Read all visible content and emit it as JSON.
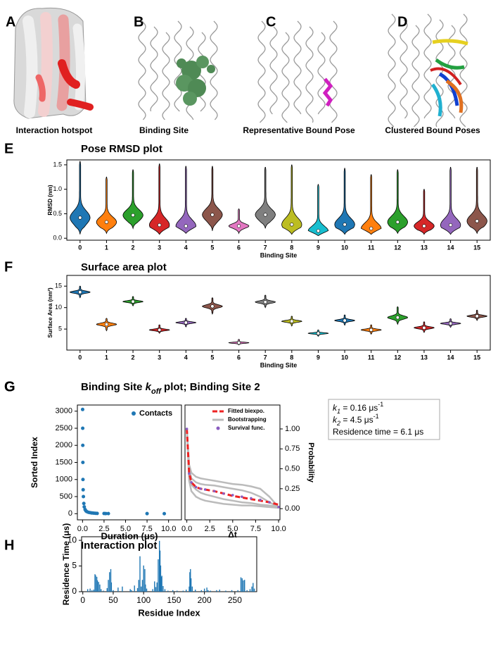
{
  "panels": [
    {
      "label": "A",
      "caption": "Interaction hotspot"
    },
    {
      "label": "B",
      "caption": "Binding Site"
    },
    {
      "label": "C",
      "caption": "Representative Bound Pose"
    },
    {
      "label": "D",
      "caption": "Clustered Bound Poses"
    }
  ],
  "chart_data": [
    {
      "type": "violin",
      "label": "E",
      "title": "Pose RMSD plot",
      "xlabel": "Binding Site",
      "ylabel": "RMSD (nm)",
      "categories": [
        "0",
        "1",
        "2",
        "3",
        "4",
        "5",
        "6",
        "7",
        "8",
        "9",
        "10",
        "11",
        "12",
        "13",
        "14",
        "15"
      ],
      "values": [
        0.42,
        0.33,
        0.47,
        0.27,
        0.25,
        0.48,
        0.25,
        0.48,
        0.28,
        0.15,
        0.28,
        0.2,
        0.33,
        0.25,
        0.27,
        0.35
      ],
      "max": [
        1.57,
        1.25,
        1.4,
        1.52,
        1.47,
        1.47,
        0.6,
        1.45,
        1.5,
        1.1,
        1.43,
        1.3,
        1.4,
        1.0,
        1.45,
        1.45
      ],
      "min": [
        0.08,
        0.1,
        0.2,
        0.08,
        0.1,
        0.15,
        0.1,
        0.2,
        0.08,
        0.05,
        0.08,
        0.08,
        0.1,
        0.08,
        0.08,
        0.1
      ],
      "colors": [
        "#1f77b4",
        "#ff7f0e",
        "#2ca02c",
        "#d62728",
        "#9467bd",
        "#8c564b",
        "#e377c2",
        "#7f7f7f",
        "#bcbd22",
        "#17becf",
        "#1f77b4",
        "#ff7f0e",
        "#2ca02c",
        "#d62728",
        "#9467bd",
        "#8c564b"
      ],
      "ylim": [
        -0.04,
        1.6
      ],
      "yticks": [
        {
          "value": 0,
          "label": "0.0"
        },
        0.5,
        {
          "value": 1,
          "label": "1.0"
        },
        1.5
      ]
    },
    {
      "type": "violin",
      "label": "F",
      "title": "Surface area plot",
      "xlabel": "Binding Site",
      "ylabel": "Surface Area (nm²)",
      "categories": [
        "0",
        "1",
        "2",
        "3",
        "4",
        "5",
        "6",
        "7",
        "8",
        "9",
        "10",
        "11",
        "12",
        "13",
        "14",
        "15"
      ],
      "values": [
        13.6,
        6.1,
        11.4,
        4.8,
        6.5,
        10.3,
        1.8,
        11.3,
        6.8,
        4.0,
        7.0,
        4.8,
        7.7,
        5.3,
        6.3,
        8.0
      ],
      "max": [
        15.0,
        7.5,
        12.6,
        6.0,
        7.5,
        12.3,
        2.6,
        12.9,
        8.0,
        4.8,
        8.3,
        6.0,
        10.2,
        6.7,
        7.4,
        9.4
      ],
      "min": [
        12.3,
        4.6,
        10.4,
        4.0,
        5.5,
        8.5,
        1.3,
        10.0,
        5.7,
        3.3,
        5.9,
        3.8,
        6.1,
        4.2,
        5.4,
        7.0
      ],
      "colors": [
        "#1f77b4",
        "#ff7f0e",
        "#2ca02c",
        "#d62728",
        "#9467bd",
        "#8c564b",
        "#e377c2",
        "#7f7f7f",
        "#bcbd22",
        "#17becf",
        "#1f77b4",
        "#ff7f0e",
        "#2ca02c",
        "#d62728",
        "#9467bd",
        "#8c564b"
      ],
      "ylim": [
        0.1,
        17.5
      ],
      "yticks": [
        5,
        10,
        15
      ]
    },
    {
      "type": "scatter",
      "label": "G",
      "title_parts": [
        "Binding Site ",
        "k",
        "off",
        " plot; Binding Site 2"
      ],
      "xlabel": "Duration (μs)",
      "ylabel": "Sorted Index",
      "legend": "upper right",
      "series": [
        {
          "name": "Contacts",
          "color": "#1f77b4",
          "x": [
            0.01,
            0.02,
            0.03,
            0.04,
            0.05,
            0.07,
            0.1,
            0.15,
            0.2,
            0.3,
            0.4,
            0.5,
            0.7,
            0.9,
            1.1,
            1.3,
            1.5,
            1.7,
            2.5,
            2.7,
            3.0,
            7.5,
            9.5
          ],
          "values": [
            3050,
            2500,
            2000,
            1500,
            1000,
            700,
            500,
            300,
            200,
            120,
            80,
            60,
            40,
            30,
            20,
            15,
            10,
            8,
            5,
            4,
            3,
            2,
            1
          ]
        }
      ],
      "xlim": [
        -0.6,
        11.5
      ],
      "xticks": [
        {
          "value": 0,
          "label": "0.0"
        },
        2.5,
        {
          "value": 5,
          "label": "5.0"
        },
        7.5,
        {
          "value": 10,
          "label": "10.0"
        }
      ],
      "ylim": [
        -180,
        3180
      ],
      "yticks": [
        0,
        500,
        1000,
        1500,
        2000,
        2500,
        3000
      ]
    },
    {
      "type": "line",
      "xlabel": "Δt",
      "ylabel": "Probability",
      "legend": "upper right",
      "x": [
        0,
        0.25,
        0.5,
        1,
        1.5,
        2,
        3,
        4,
        5,
        6,
        7,
        8,
        9,
        10
      ],
      "series": [
        {
          "name": "Fitted biexpo.",
          "color": "#ee2222",
          "values": [
            1.0,
            0.45,
            0.33,
            0.27,
            0.25,
            0.24,
            0.22,
            0.19,
            0.16,
            0.14,
            0.12,
            0.1,
            0.08,
            0.05
          ]
        },
        {
          "name": "Bootstrapping",
          "color": "#bbbbbb",
          "lines": [
            [
              1,
              0.55,
              0.45,
              0.4,
              0.38,
              0.37,
              0.35,
              0.33,
              0.31,
              0.3,
              0.28,
              0.25,
              0.15,
              0.02
            ],
            [
              1,
              0.5,
              0.38,
              0.33,
              0.31,
              0.3,
              0.29,
              0.27,
              0.25,
              0.23,
              0.2,
              0.15,
              0.08,
              0.02
            ],
            [
              1,
              0.42,
              0.3,
              0.24,
              0.2,
              0.18,
              0.15,
              0.12,
              0.1,
              0.08,
              0.07,
              0.05,
              0.04,
              0.02
            ],
            [
              1,
              0.35,
              0.22,
              0.15,
              0.12,
              0.1,
              0.08,
              0.06,
              0.05,
              0.04,
              0.04,
              0.03,
              0.02,
              0.01
            ]
          ]
        },
        {
          "name": "Survival func.",
          "color": "#8a5cc0",
          "values": [
            1.0,
            0.44,
            0.33,
            0.27,
            0.25,
            0.24,
            0.22,
            0.19,
            0.17,
            0.15,
            0.13,
            0.11,
            0.08,
            0.02
          ]
        }
      ],
      "xlim": [
        -0.2,
        10.15
      ],
      "xticks": [
        {
          "value": 0,
          "label": "0.0"
        },
        2.5,
        {
          "value": 5,
          "label": "5.0"
        },
        7.5,
        {
          "value": 10,
          "label": "10.0"
        }
      ],
      "ylim": [
        -0.14,
        1.3
      ],
      "yticks": [
        {
          "value": 0,
          "label": "0.00"
        },
        0.25,
        {
          "value": 0.5,
          "label": "0.50"
        },
        0.75,
        {
          "value": 1,
          "label": "1.00"
        }
      ],
      "annotation": [
        {
          "symbol": "k",
          "subscript": "1",
          "text": " = 0.16 μs",
          "superscript": "-1"
        },
        {
          "symbol": "k",
          "subscript": "2",
          "text": " = 4.5 μs",
          "superscript": "-1"
        },
        {
          "text": "Residence time = 6.1 μs"
        }
      ]
    },
    {
      "type": "bar",
      "label": "H",
      "title": "Interaction plot",
      "xlabel": "Residue Index",
      "ylabel": "Residence Time (μs)",
      "color": "#1f77b4",
      "x": [
        8,
        12,
        15,
        18,
        20,
        21,
        23,
        24,
        26,
        28,
        30,
        34,
        40,
        42,
        44,
        46,
        47,
        50,
        58,
        65,
        78,
        80,
        85,
        90,
        92,
        94,
        96,
        98,
        100,
        102,
        103,
        105,
        115,
        118,
        120,
        122,
        124,
        126,
        127,
        128,
        129,
        130,
        132,
        135,
        140,
        148,
        155,
        165,
        170,
        175,
        176,
        177,
        178,
        180,
        185,
        195,
        200,
        204,
        206,
        210,
        220,
        225,
        235,
        245,
        255,
        260,
        262,
        264,
        266,
        270,
        275,
        278,
        280,
        282
      ],
      "values": [
        0.5,
        0.6,
        0.3,
        0.4,
        3.4,
        3.2,
        2.9,
        2.2,
        1.9,
        1.4,
        0.5,
        0.2,
        0.7,
        2.3,
        3.8,
        4.4,
        1.8,
        0.3,
        0.8,
        1.0,
        0.5,
        0.3,
        1.2,
        0.7,
        2.3,
        6.9,
        1.0,
        2.3,
        5.1,
        4.4,
        1.4,
        0.6,
        0.5,
        2.0,
        0.9,
        1.8,
        6.3,
        9.9,
        8.0,
        5.1,
        2.9,
        3.1,
        1.1,
        0.5,
        0.2,
        0.3,
        0.2,
        0.2,
        0.4,
        1.0,
        3.8,
        4.4,
        2.6,
        1.0,
        0.4,
        0.3,
        0.6,
        0.8,
        0.3,
        0.2,
        0.3,
        0.4,
        0.2,
        0.3,
        0.3,
        2.8,
        2.6,
        2.2,
        2.3,
        0.3,
        0.5,
        1.0,
        1.7,
        0.6
      ],
      "xlim": [
        -2,
        286
      ],
      "xticks": [
        0,
        50,
        100,
        150,
        200,
        250
      ],
      "ylim": [
        0,
        10.7
      ],
      "yticks": [
        0,
        5,
        10
      ]
    }
  ]
}
